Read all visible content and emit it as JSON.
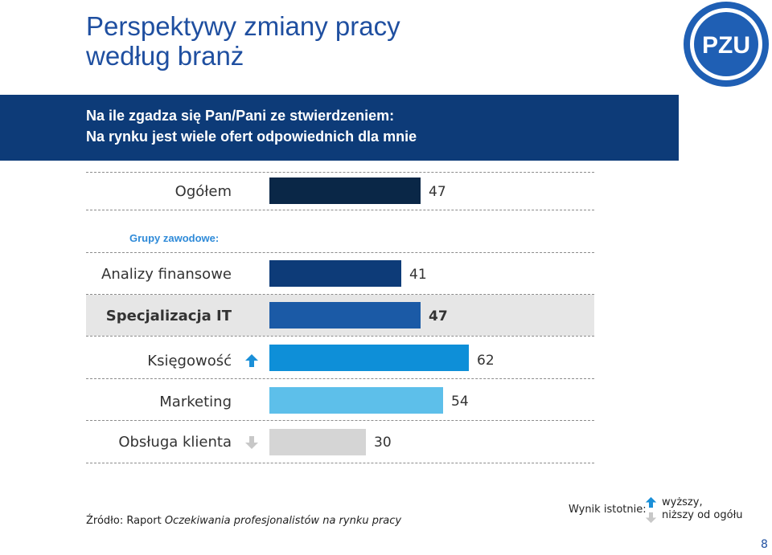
{
  "title_line1": "Perspektywy zmiany pracy",
  "title_line2": "według branż",
  "logo_text": "PZU",
  "question": {
    "line1": "Na ile zgadza się Pan/Pani ze stwierdzeniem:",
    "line2": "Na rynku jest wiele ofert odpowiednich dla mnie"
  },
  "group_label": "Grupy zawodowe:",
  "chart_data": {
    "type": "bar",
    "orientation": "horizontal",
    "categories": [
      "Ogółem",
      "Analizy  finansowe",
      "Specjalizacja IT",
      "Księgowość",
      "Marketing",
      "Obsługa klienta"
    ],
    "values": [
      47,
      41,
      47,
      62,
      54,
      30
    ],
    "value_labels": [
      "47",
      "41",
      "47",
      "62",
      "54",
      "30"
    ],
    "colors": [
      "#0a2747",
      "#0d3b78",
      "#1b5aa6",
      "#0e8fd8",
      "#5dbfea",
      "#d5d5d5"
    ],
    "significance": [
      "",
      "",
      "",
      "higher",
      "",
      "lower"
    ],
    "highlighted": "Specjalizacja IT",
    "xlim": [
      0,
      100
    ]
  },
  "source": {
    "prefix": "Źródło: Raport ",
    "italic": "Oczekiwania profesjonalistów na rynku pracy"
  },
  "legend": {
    "label": "Wynik istotnie:",
    "higher": "wyższy,",
    "lower": "niższy od ogółu"
  },
  "page_number": "8"
}
